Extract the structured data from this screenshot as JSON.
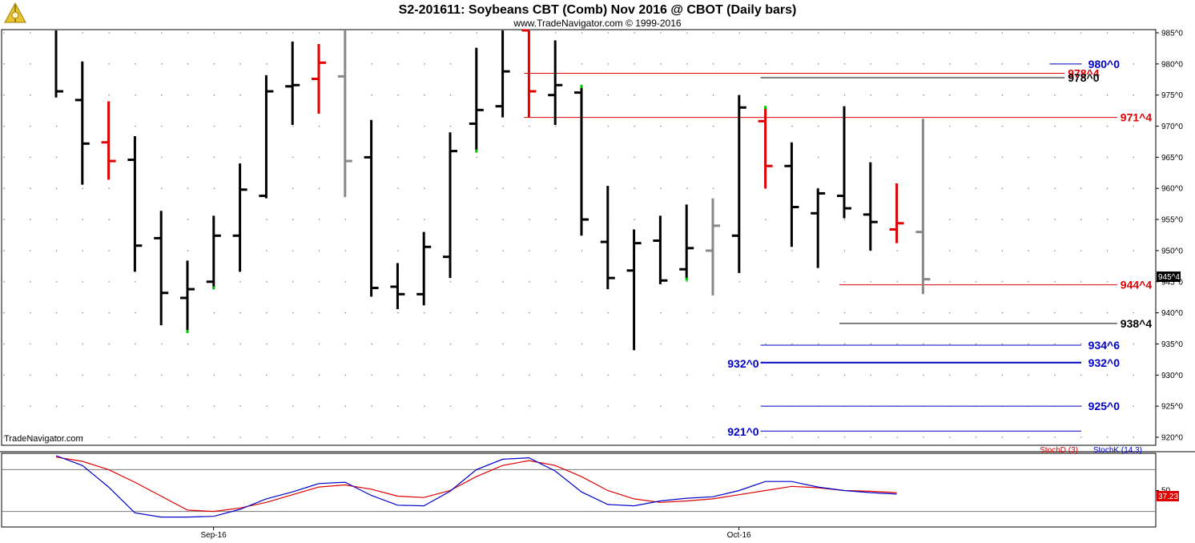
{
  "header": {
    "title": "S2-201611:  Soybeans CBT (Comb) Nov 2016 @ CBOT  (Daily bars)",
    "copyright": "www.TradeNavigator.com © 1999-2016"
  },
  "watermark": "TradeNavigator.com",
  "colors": {
    "up_bar": "#000000",
    "down_bar": "#e00000",
    "neutral_bar": "#888888",
    "blue_level": "#0000c8",
    "red_level": "#e00000",
    "stoch_k": "#0000c8",
    "stoch_d": "#e00000",
    "grid": "#8a8a8a",
    "marker": "#00c800"
  },
  "price_axis": {
    "labels": [
      "985^0",
      "980^0",
      "975^0",
      "970^0",
      "965^0",
      "960^0",
      "955^0",
      "950^0",
      "945^0",
      "940^0",
      "935^0",
      "930^0",
      "925^0",
      "920^0"
    ]
  },
  "current_price": "945^4",
  "levels": [
    {
      "label": "980^0",
      "color": "blue",
      "price": 980.0,
      "x_from": 38,
      "x_to": 67,
      "label_pos": "right-edge"
    },
    {
      "label": "978^4",
      "color": "red",
      "price": 978.5,
      "x_from": 18,
      "x_to": 39,
      "label_pos": "inline"
    },
    {
      "label": "978^0",
      "color": "black",
      "price": 977.8,
      "x_from": 27,
      "x_to": 39,
      "label_pos": "inline-black"
    },
    {
      "label": "971^4",
      "color": "red",
      "price": 971.4,
      "x_from": 18,
      "x_to": 41,
      "label_pos": "inline"
    },
    {
      "label": "944^4",
      "color": "red",
      "price": 944.5,
      "x_from": 30,
      "x_to": 41,
      "label_pos": "inline"
    },
    {
      "label": "938^4",
      "color": "black",
      "price": 938.3,
      "x_from": 30,
      "x_to": 41,
      "label_pos": "inline-black"
    },
    {
      "label": "934^6",
      "color": "blue",
      "price": 934.8,
      "x_from": 27,
      "x_to": 67,
      "label_pos": "right-edge"
    },
    {
      "label": "932^0",
      "color": "blue",
      "price": 932.0,
      "x_from": 27,
      "x_to": 67,
      "label_pos": "both",
      "thick": true
    },
    {
      "label": "925^0",
      "color": "blue",
      "price": 925.0,
      "x_from": 27,
      "x_to": 67,
      "label_pos": "right-edge"
    },
    {
      "label": "921^0",
      "color": "blue",
      "price": 921.0,
      "x_from": 27,
      "x_to": 67,
      "label_pos": "left-only"
    }
  ],
  "chart_data": {
    "type": "ohlc",
    "title": "S2-201611:  Soybeans CBT (Comb) Nov 2016 @ CBOT  (Daily bars)",
    "ylim": [
      919,
      986
    ],
    "x_tick_labels": [
      {
        "label": "Sep-16",
        "index": 7
      },
      {
        "label": "Oct-16",
        "index": 27
      }
    ],
    "bars": [
      {
        "o": null,
        "h": 990,
        "l": 974.6,
        "c": 975.6,
        "color": "black"
      },
      {
        "o": 974.2,
        "h": 980.4,
        "l": 960.6,
        "c": 967.2,
        "color": "black"
      },
      {
        "o": 967.4,
        "h": 974.0,
        "l": 961.4,
        "c": 964.4,
        "color": "red"
      },
      {
        "o": 964.6,
        "h": 968.4,
        "l": 946.6,
        "c": 950.8,
        "color": "black"
      },
      {
        "o": 952.0,
        "h": 956.4,
        "l": 938.0,
        "c": 943.2,
        "color": "black"
      },
      {
        "o": 942.4,
        "h": 948.4,
        "l": 937.0,
        "c": 943.8,
        "color": "black",
        "mark": "low"
      },
      {
        "o": 945.0,
        "h": 955.6,
        "l": 944.0,
        "c": 952.4,
        "color": "black",
        "mark": "low"
      },
      {
        "o": 952.4,
        "h": 964.0,
        "l": 946.6,
        "c": 959.8,
        "color": "black"
      },
      {
        "o": 958.8,
        "h": 978.2,
        "l": 958.4,
        "c": 975.6,
        "color": "black"
      },
      {
        "o": 976.4,
        "h": 983.6,
        "l": 970.2,
        "c": 976.6,
        "color": "black"
      },
      {
        "o": 977.6,
        "h": 983.2,
        "l": 972.0,
        "c": 980.2,
        "color": "red"
      },
      {
        "o": 978.0,
        "h": 990,
        "l": 958.6,
        "c": 964.4,
        "color": "gray"
      },
      {
        "o": 965.0,
        "h": 971.0,
        "l": 942.6,
        "c": 944.0,
        "color": "black"
      },
      {
        "o": 944.2,
        "h": 948.0,
        "l": 940.6,
        "c": 943.0,
        "color": "black"
      },
      {
        "o": 943.0,
        "h": 953.0,
        "l": 941.2,
        "c": 950.6,
        "color": "black"
      },
      {
        "o": 949.0,
        "h": 969.0,
        "l": 945.6,
        "c": 966.0,
        "color": "black"
      },
      {
        "o": 970.4,
        "h": 982.6,
        "l": 966.0,
        "c": 972.6,
        "color": "black",
        "mark": "low"
      },
      {
        "o": 973.2,
        "h": 990,
        "l": 971.4,
        "c": 978.8,
        "color": "black"
      },
      {
        "o": 985.4,
        "h": 990,
        "l": 971.4,
        "c": 975.6,
        "color": "red"
      },
      {
        "o": 975.0,
        "h": 983.8,
        "l": 970.2,
        "c": 976.6,
        "color": "black"
      },
      {
        "o": 975.4,
        "h": 976.4,
        "l": 952.4,
        "c": 955.0,
        "color": "black",
        "mark": "high"
      },
      {
        "o": 951.4,
        "h": 960.4,
        "l": 943.8,
        "c": 945.6,
        "color": "black"
      },
      {
        "o": 946.8,
        "h": 953.4,
        "l": 934.0,
        "c": 951.2,
        "color": "black"
      },
      {
        "o": 951.6,
        "h": 955.6,
        "l": 944.6,
        "c": 945.2,
        "color": "black"
      },
      {
        "o": 947.0,
        "h": 957.4,
        "l": 945.4,
        "c": 950.4,
        "color": "black",
        "mark": "low"
      },
      {
        "o": 950.0,
        "h": 958.4,
        "l": 942.8,
        "c": 954.0,
        "color": "gray"
      },
      {
        "o": 952.4,
        "h": 975.0,
        "l": 946.4,
        "c": 973.0,
        "color": "black"
      },
      {
        "o": 970.8,
        "h": 973.0,
        "l": 960.0,
        "c": 963.6,
        "color": "red",
        "mark": "high"
      },
      {
        "o": 963.6,
        "h": 967.4,
        "l": 950.6,
        "c": 957.0,
        "color": "black"
      },
      {
        "o": 956.0,
        "h": 960.0,
        "l": 947.2,
        "c": 959.2,
        "color": "black"
      },
      {
        "o": 958.8,
        "h": 973.2,
        "l": 955.2,
        "c": 956.8,
        "color": "black"
      },
      {
        "o": 955.8,
        "h": 964.2,
        "l": 950.0,
        "c": 954.6,
        "color": "black"
      },
      {
        "o": 953.4,
        "h": 960.8,
        "l": 951.2,
        "c": 954.4,
        "color": "red"
      },
      {
        "o": 953.0,
        "h": 971.2,
        "l": 943.0,
        "c": 945.4,
        "color": "gray"
      }
    ],
    "indicator": {
      "series": [
        {
          "name": "StochD (3)",
          "color": "#e00000",
          "values": [
            98,
            92,
            80,
            62,
            42,
            22,
            20,
            25,
            33,
            44,
            55,
            58,
            52,
            42,
            40,
            50,
            70,
            86,
            93,
            86,
            70,
            50,
            38,
            33,
            35,
            38,
            44,
            50,
            56,
            54,
            50,
            49,
            47
          ]
        },
        {
          "name": "StochK (14,3)",
          "color": "#0000c8",
          "values": [
            100,
            86,
            55,
            18,
            12,
            12,
            13,
            23,
            38,
            48,
            60,
            62,
            43,
            29,
            28,
            49,
            80,
            95,
            97,
            78,
            48,
            30,
            28,
            35,
            39,
            41,
            50,
            63,
            63,
            55,
            50,
            47,
            45
          ]
        }
      ],
      "tick_label": "50",
      "current_value": "37.23"
    }
  }
}
